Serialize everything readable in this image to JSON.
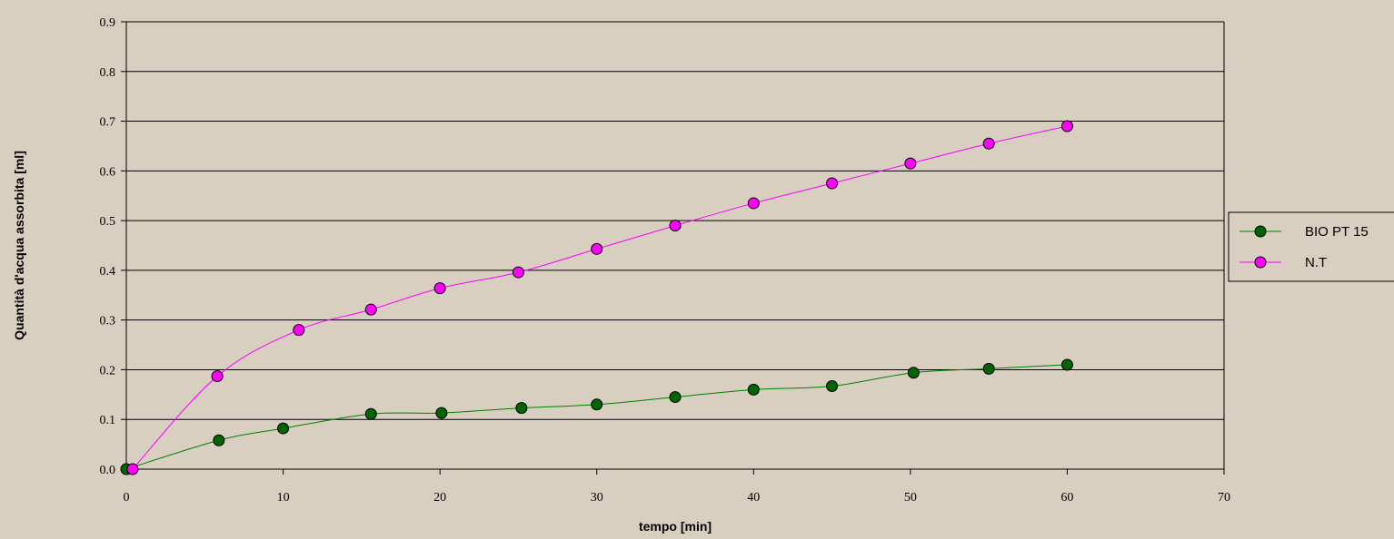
{
  "chart_data": {
    "type": "line",
    "title": "",
    "xlabel": "tempo [min]",
    "ylabel": "Quantità d'acqua assorbita [ml]",
    "xlim": [
      0,
      70
    ],
    "ylim": [
      0,
      0.9
    ],
    "x_ticks": [
      0,
      10,
      20,
      30,
      40,
      50,
      60,
      70
    ],
    "y_ticks": [
      0.0,
      0.1,
      0.2,
      0.3,
      0.4,
      0.5,
      0.6,
      0.7,
      0.8,
      0.9
    ],
    "x_tick_labels": [
      "0",
      "10",
      "20",
      "30",
      "40",
      "50",
      "60",
      "70"
    ],
    "y_tick_labels": [
      "0.0",
      "0.1",
      "0.2",
      "0.3",
      "0.4",
      "0.5",
      "0.6",
      "0.7",
      "0.8",
      "0.9"
    ],
    "grid": "horizontal",
    "legend_position": "right",
    "series": [
      {
        "name": "BIO PT 15",
        "color": "#008000",
        "marker_color": "#006400",
        "x": [
          0,
          5.9,
          10,
          15.6,
          20.1,
          25.2,
          30,
          35,
          40,
          45,
          50.2,
          55,
          60
        ],
        "y": [
          0.0,
          0.058,
          0.082,
          0.111,
          0.113,
          0.123,
          0.13,
          0.145,
          0.16,
          0.167,
          0.194,
          0.202,
          0.21
        ]
      },
      {
        "name": "N.T",
        "color": "#ff00ff",
        "marker_color": "#ff00ff",
        "x": [
          0.4,
          5.8,
          11,
          15.6,
          20,
          25,
          30,
          35,
          40,
          45,
          50,
          55,
          60
        ],
        "y": [
          0.0,
          0.187,
          0.28,
          0.321,
          0.364,
          0.396,
          0.443,
          0.49,
          0.535,
          0.575,
          0.615,
          0.655,
          0.69
        ]
      }
    ]
  }
}
